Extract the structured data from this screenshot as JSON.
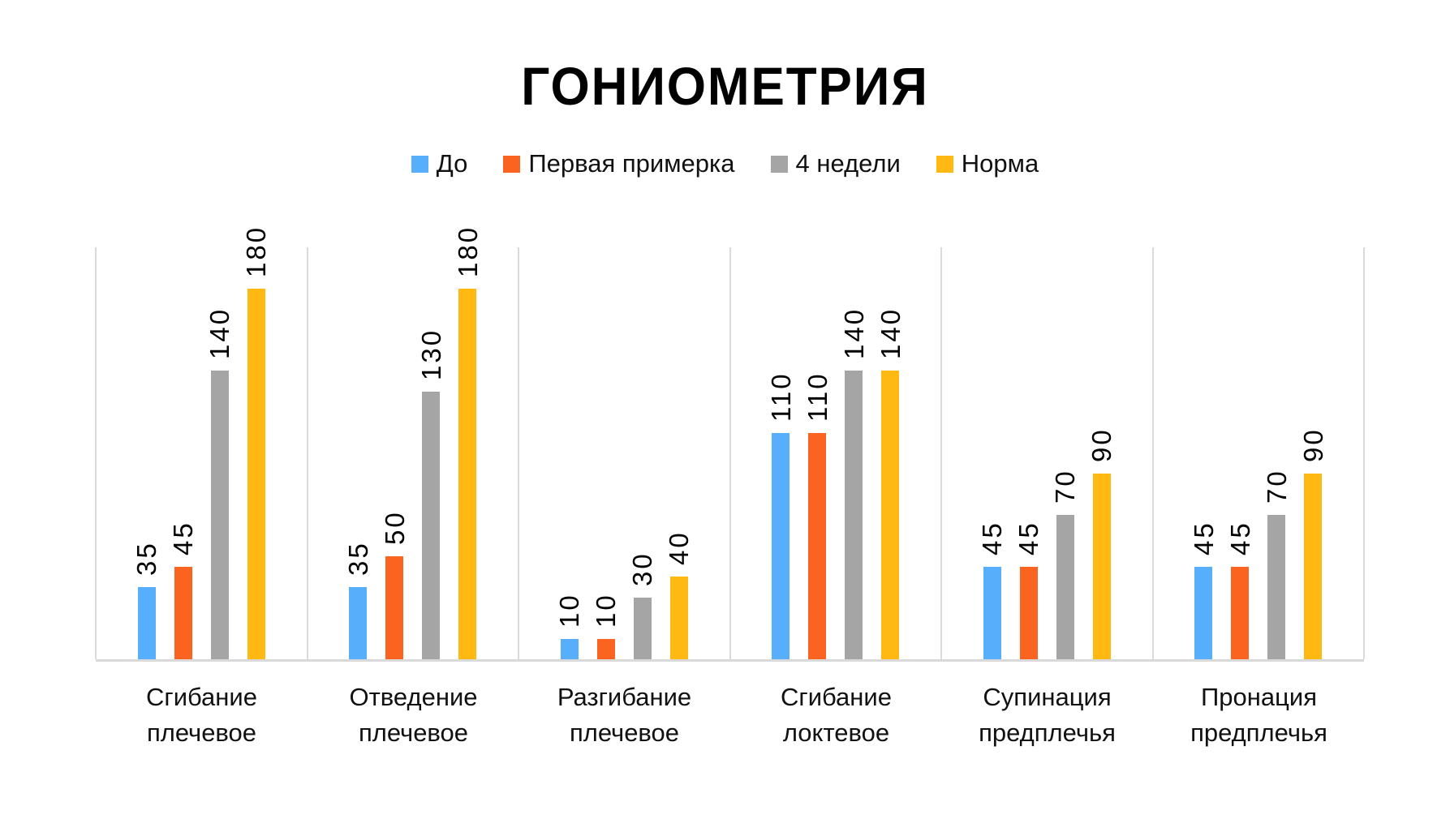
{
  "title": "ГОНИОМЕТРИЯ",
  "legend": {
    "position": "top",
    "items": [
      "До",
      "Первая примерка",
      "4 недели",
      "Норма"
    ]
  },
  "colors": {
    "series_blue": "#57AEFA",
    "series_orange": "#FA6420",
    "series_gray": "#A5A5A5",
    "series_yellow": "#FFB912",
    "gridline": "#DADADA",
    "baseline": "#D9D9D9",
    "text": "#111111",
    "title_text": "#000000",
    "background": "#FFFFFF"
  },
  "chart_data": {
    "type": "bar",
    "title": "ГОНИОМЕТРИЯ",
    "categories": [
      "Сгибание\nплечевое",
      "Отведение\nплечевое",
      "Разгибание\nплечевое",
      "Сгибание\nлоктевое",
      "Супинация\nпредплечья",
      "Пронация\nпредплечья"
    ],
    "series": [
      {
        "name": "До",
        "color": "#57AEFA",
        "values": [
          35,
          35,
          10,
          110,
          45,
          45
        ]
      },
      {
        "name": "Первая примерка",
        "color": "#FA6420",
        "values": [
          45,
          50,
          10,
          110,
          45,
          45
        ]
      },
      {
        "name": "4 недели",
        "color": "#A5A5A5",
        "values": [
          140,
          130,
          30,
          140,
          70,
          70
        ]
      },
      {
        "name": "Норма",
        "color": "#FFB912",
        "values": [
          180,
          180,
          40,
          140,
          90,
          90
        ]
      }
    ],
    "ylim": [
      0,
      200
    ],
    "xlabel": "",
    "ylabel": "",
    "grid": "vertical category separators only",
    "value_labels": "rotated 90° above bars",
    "legend_position": "top-center"
  }
}
